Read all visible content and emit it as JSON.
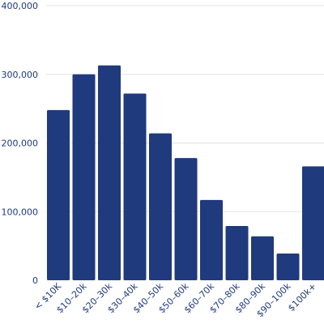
{
  "chart_data": {
    "type": "bar",
    "title": "",
    "xlabel": "",
    "ylabel": "",
    "categories": [
      "< $10K",
      "$10–20k",
      "$20–30k",
      "$30–40k",
      "$40–50k",
      "$50–60k",
      "$60–70k",
      "$70–80k",
      "$80–90k",
      "$90–100k",
      "$100k+"
    ],
    "values": [
      248000,
      300000,
      313000,
      272000,
      214000,
      178000,
      117000,
      79000,
      64000,
      39000,
      166000
    ],
    "ylim": [
      0,
      400000
    ],
    "yticks": [
      0,
      100000,
      200000,
      300000,
      400000
    ],
    "ytick_labels": [
      "0",
      "100,000",
      "200,000",
      "300,000",
      "400,000"
    ],
    "grid": "horizontal",
    "colors": {
      "bar": "#1f3a7d",
      "grid": "#e3e3e3",
      "text": "#1f3a7d"
    }
  }
}
